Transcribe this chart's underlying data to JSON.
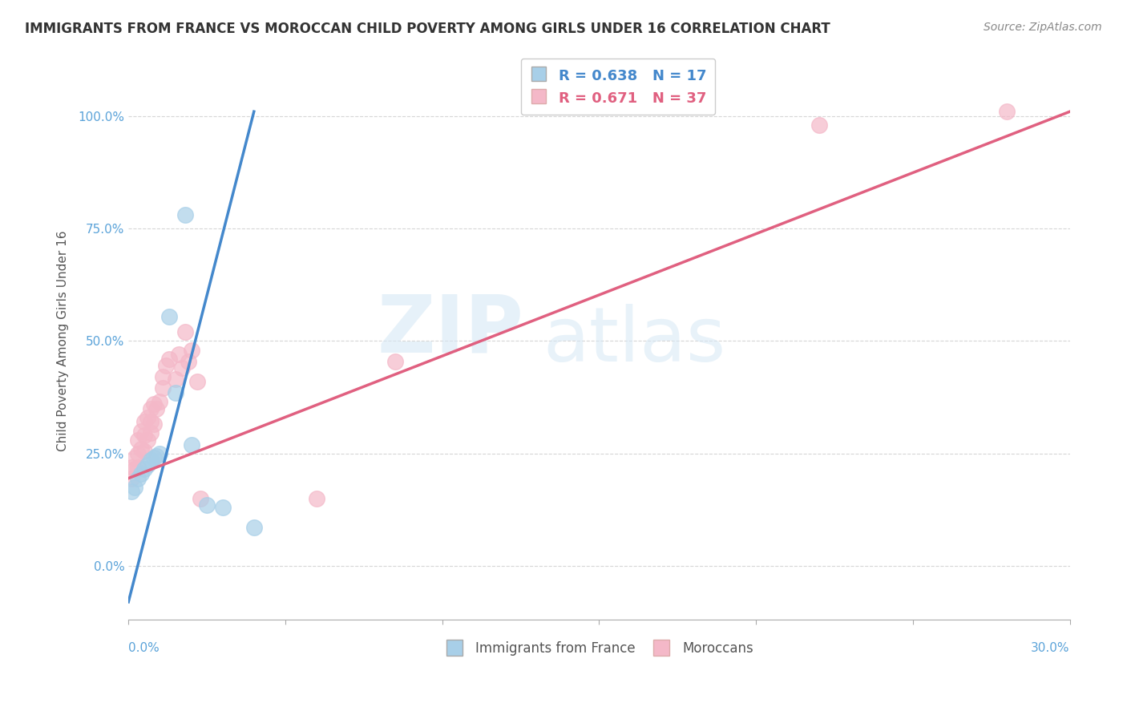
{
  "title": "IMMIGRANTS FROM FRANCE VS MOROCCAN CHILD POVERTY AMONG GIRLS UNDER 16 CORRELATION CHART",
  "source": "Source: ZipAtlas.com",
  "ylabel": "Child Poverty Among Girls Under 16",
  "legend_blue_text": "R = 0.638   N = 17",
  "legend_pink_text": "R = 0.671   N = 37",
  "legend_label_blue": "Immigrants from France",
  "legend_label_pink": "Moroccans",
  "blue_scatter_x": [
    0.001,
    0.002,
    0.003,
    0.004,
    0.005,
    0.006,
    0.007,
    0.008,
    0.009,
    0.01,
    0.013,
    0.015,
    0.018,
    0.02,
    0.025,
    0.03,
    0.04
  ],
  "blue_scatter_y": [
    0.165,
    0.175,
    0.195,
    0.205,
    0.215,
    0.225,
    0.235,
    0.24,
    0.245,
    0.25,
    0.555,
    0.385,
    0.78,
    0.27,
    0.135,
    0.13,
    0.085
  ],
  "pink_scatter_x": [
    0.001,
    0.001,
    0.002,
    0.002,
    0.003,
    0.003,
    0.003,
    0.004,
    0.004,
    0.005,
    0.005,
    0.005,
    0.006,
    0.006,
    0.007,
    0.007,
    0.007,
    0.008,
    0.008,
    0.009,
    0.01,
    0.011,
    0.011,
    0.012,
    0.013,
    0.015,
    0.016,
    0.017,
    0.018,
    0.019,
    0.02,
    0.022,
    0.023,
    0.06,
    0.085,
    0.22,
    0.28
  ],
  "pink_scatter_y": [
    0.195,
    0.22,
    0.215,
    0.24,
    0.22,
    0.25,
    0.28,
    0.26,
    0.3,
    0.255,
    0.29,
    0.32,
    0.28,
    0.33,
    0.295,
    0.32,
    0.35,
    0.315,
    0.36,
    0.35,
    0.365,
    0.395,
    0.42,
    0.445,
    0.46,
    0.415,
    0.47,
    0.44,
    0.52,
    0.455,
    0.48,
    0.41,
    0.15,
    0.15,
    0.455,
    0.98,
    1.01
  ],
  "blue_line_x": [
    0.0,
    0.04
  ],
  "blue_line_y": [
    -0.08,
    1.01
  ],
  "pink_line_x": [
    0.0,
    0.3
  ],
  "pink_line_y": [
    0.195,
    1.01
  ],
  "watermark_zip": "ZIP",
  "watermark_atlas": "atlas",
  "xlim": [
    0.0,
    0.3
  ],
  "ylim": [
    -0.12,
    1.12
  ],
  "blue_color": "#a8cfe8",
  "pink_color": "#f4b8c8",
  "blue_line_color": "#4488cc",
  "pink_line_color": "#e06080",
  "axis_tick_color": "#5ba3d9",
  "title_fontsize": 12,
  "axis_tick_fontsize": 11,
  "ylabel_fontsize": 11,
  "legend_fontsize": 13
}
